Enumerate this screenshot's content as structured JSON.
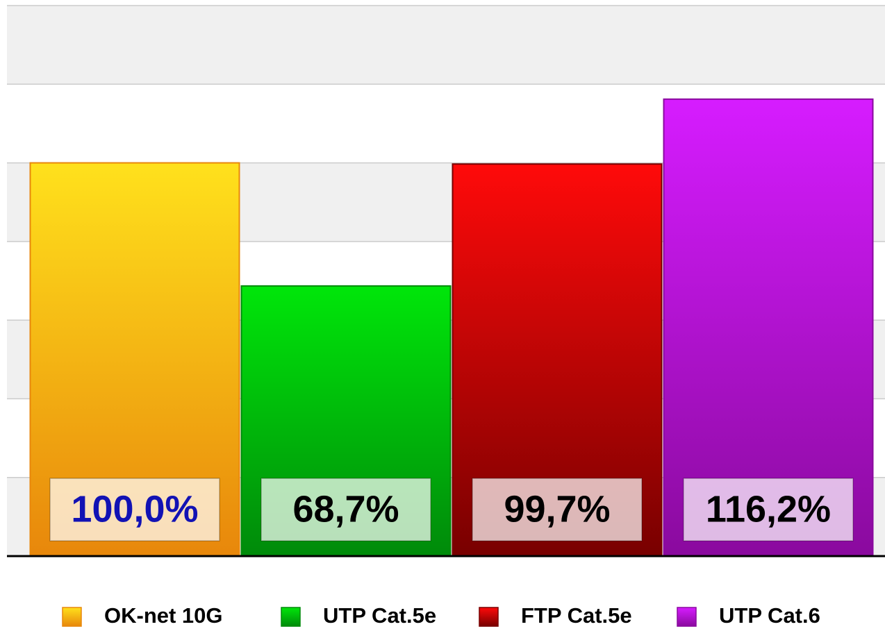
{
  "chart_data": {
    "type": "bar",
    "categories": [
      "OK-net 10G",
      "UTP Cat.5e",
      "FTP Cat.5e",
      "UTP Cat.6"
    ],
    "values": [
      100.0,
      68.7,
      99.7,
      116.2
    ],
    "value_labels": [
      "100,0%",
      "68,7%",
      "99,7%",
      "116,2%"
    ],
    "colors": [
      [
        "#ffe11c",
        "#e8870b"
      ],
      [
        "#00e60a",
        "#008a0a"
      ],
      [
        "#ff0a0a",
        "#780000"
      ],
      [
        "#d61cff",
        "#8a0a9e"
      ]
    ],
    "value_label_colors": [
      "#1212b4",
      "#000000",
      "#000000",
      "#000000"
    ],
    "ylim": [
      0,
      140
    ],
    "yticks": [
      0,
      20,
      40,
      60,
      80,
      100,
      120,
      140
    ],
    "grid": true,
    "legend": "bottom"
  }
}
